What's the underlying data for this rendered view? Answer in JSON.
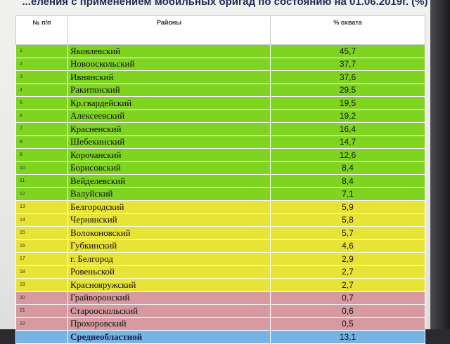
{
  "title": "...еления с применением мобильных бригад по состоянию на 01.06.2019г. (%)",
  "headers": {
    "num": "№ п/п",
    "district": "Районы",
    "coverage": "% охвата"
  },
  "colors": {
    "green": "#7fd321",
    "yellow": "#e8e337",
    "red": "#d79aa0",
    "blue": "#77b3e3"
  },
  "rows": [
    {
      "n": "1",
      "name": "Яковлевский",
      "value": "45,7",
      "group": "green"
    },
    {
      "n": "2",
      "name": "Новооскольский",
      "value": "37,7",
      "group": "green"
    },
    {
      "n": "3",
      "name": "Ивнянский",
      "value": "37,6",
      "group": "green"
    },
    {
      "n": "4",
      "name": "Ракитянский",
      "value": "29,5",
      "group": "green"
    },
    {
      "n": "5",
      "name": "Кр.гвардейский",
      "value": "19,5",
      "group": "green"
    },
    {
      "n": "6",
      "name": "Алексеевский",
      "value": "19,2",
      "group": "green"
    },
    {
      "n": "7",
      "name": "Красненский",
      "value": "16,4",
      "group": "green"
    },
    {
      "n": "8",
      "name": "Шебекинский",
      "value": "14,7",
      "group": "green"
    },
    {
      "n": "9",
      "name": "Корочанский",
      "value": "12,6",
      "group": "green"
    },
    {
      "n": "10",
      "name": "Борисовский",
      "value": "8,4",
      "group": "green"
    },
    {
      "n": "11",
      "name": "Вейделевский",
      "value": "8,4",
      "group": "green"
    },
    {
      "n": "12",
      "name": "Валуйский",
      "value": "7,1",
      "group": "green"
    },
    {
      "n": "13",
      "name": "Белгородский",
      "value": "5,9",
      "group": "yellow"
    },
    {
      "n": "14",
      "name": "Чернянский",
      "value": "5,8",
      "group": "yellow"
    },
    {
      "n": "15",
      "name": "Волоконовский",
      "value": "5,7",
      "group": "yellow"
    },
    {
      "n": "16",
      "name": "Губкинский",
      "value": "4,6",
      "group": "yellow"
    },
    {
      "n": "17",
      "name": "г. Белгород",
      "value": "2,9",
      "group": "yellow"
    },
    {
      "n": "18",
      "name": "Ровеньской",
      "value": "2,7",
      "group": "yellow"
    },
    {
      "n": "19",
      "name": "Краснояружский",
      "value": "2,7",
      "group": "yellow"
    },
    {
      "n": "20",
      "name": "Грайворонский",
      "value": "0,7",
      "group": "red"
    },
    {
      "n": "21",
      "name": "Старооскольский",
      "value": "0,6",
      "group": "red"
    },
    {
      "n": "22",
      "name": "Прохоровский",
      "value": "0,5",
      "group": "red"
    },
    {
      "n": "",
      "name": "Среднеобластной",
      "value": "13,1",
      "group": "blue"
    }
  ]
}
